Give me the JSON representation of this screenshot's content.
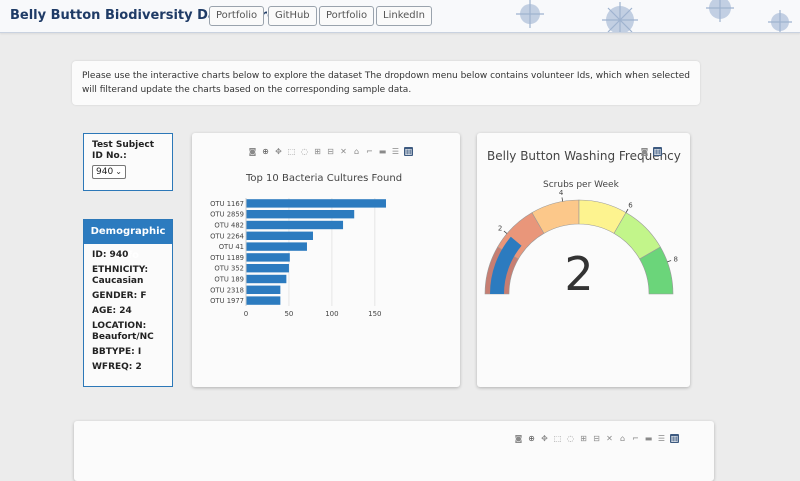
{
  "navbar": {
    "brand": "Belly Button Biodiversity Dashboard",
    "links": [
      "Portfolio",
      "GitHub",
      "Portfolio",
      "LinkedIn"
    ]
  },
  "intro": {
    "text": "Please use the interactive charts below to explore the dataset The dropdown menu below contains volunteer Ids, which when selected will filterand update the charts based on the corresponding sample data."
  },
  "selector": {
    "label": "Test Subject ID No.:",
    "selected": "940"
  },
  "demographic": {
    "title": "Demographic Info",
    "rows": [
      "ID: 940",
      "ETHNICITY: Caucasian",
      "GENDER: F",
      "AGE: 24",
      "LOCATION: Beaufort/NC",
      "BBTYPE: I",
      "WFREQ: 2"
    ]
  },
  "modebar_icons": [
    "camera-icon",
    "zoom-icon",
    "pan-icon",
    "box-select-icon",
    "lasso-icon",
    "zoom-in-icon",
    "zoom-out-icon",
    "autoscale-icon",
    "home-icon",
    "spike-lines-icon",
    "hover-closest-icon",
    "hover-compare-icon",
    "plotly-logo-icon"
  ],
  "chart_data": [
    {
      "type": "bar",
      "orientation": "horizontal",
      "title": "Top 10 Bacteria Cultures Found",
      "categories": [
        "OTU 1167",
        "OTU 2859",
        "OTU 482",
        "OTU 2264",
        "OTU 41",
        "OTU 1189",
        "OTU 352",
        "OTU 189",
        "OTU 2318",
        "OTU 1977"
      ],
      "values": [
        163,
        126,
        113,
        78,
        71,
        51,
        50,
        47,
        40,
        40
      ],
      "xlim": [
        0,
        170
      ],
      "xticks": [
        "0",
        "50",
        "100",
        "150"
      ],
      "grid": true,
      "color": "#2c7bbf"
    },
    {
      "type": "gauge",
      "title": "Belly Button Washing Frequency",
      "subtitle": "Scrubs per Week",
      "value": 2,
      "range": [
        0,
        9
      ],
      "ticks": [
        "2",
        "4",
        "6",
        "8"
      ],
      "bands": [
        "#c77e72",
        "#e9967a",
        "#fcc88a",
        "#fdf38f",
        "#c2f58a",
        "#6bd57a"
      ],
      "needle_color": "#2c7bbf"
    }
  ],
  "bottom_card": {
    "partial_title": ""
  }
}
